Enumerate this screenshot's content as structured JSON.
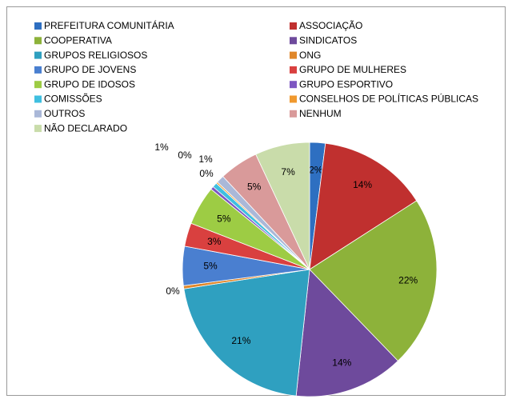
{
  "chart_data": {
    "type": "pie",
    "categories": [
      "PREFEITURA COMUNITÁRIA",
      "ASSOCIAÇÃO",
      "COOPERATIVA",
      "SINDICATOS",
      "GRUPOS RELIGIOSOS",
      "ONG",
      "GRUPO DE JOVENS",
      "GRUPO DE MULHERES",
      "GRUPO DE IDOSOS",
      " GRUPO ESPORTIVO",
      "COMISSÕES",
      "CONSELHOS DE POLÍTICAS PÚBLICAS",
      "OUTROS",
      "NENHUM",
      "NÃO DECLARADO"
    ],
    "values": [
      2,
      14,
      22,
      14,
      21,
      0.4,
      5,
      3,
      5,
      0.4,
      0.6,
      0.2,
      1,
      5,
      7
    ],
    "value_labels": [
      "2%",
      "14%",
      "22%",
      "14%",
      "21%",
      "0%",
      "5%",
      "3%",
      "5%",
      "0%",
      "1%",
      "0%",
      "1%",
      "5%",
      "7%"
    ],
    "colors": [
      "#2e6fc1",
      "#c0302f",
      "#8db23a",
      "#6e4a9c",
      "#2fa0c0",
      "#e0872a",
      "#4a7fd0",
      "#d9403f",
      "#9dcc44",
      "#7e57c2",
      "#3fbfe0",
      "#f0992e",
      "#aab8d8",
      "#d99a9a",
      "#c9dcaa"
    ],
    "legend": "top"
  }
}
